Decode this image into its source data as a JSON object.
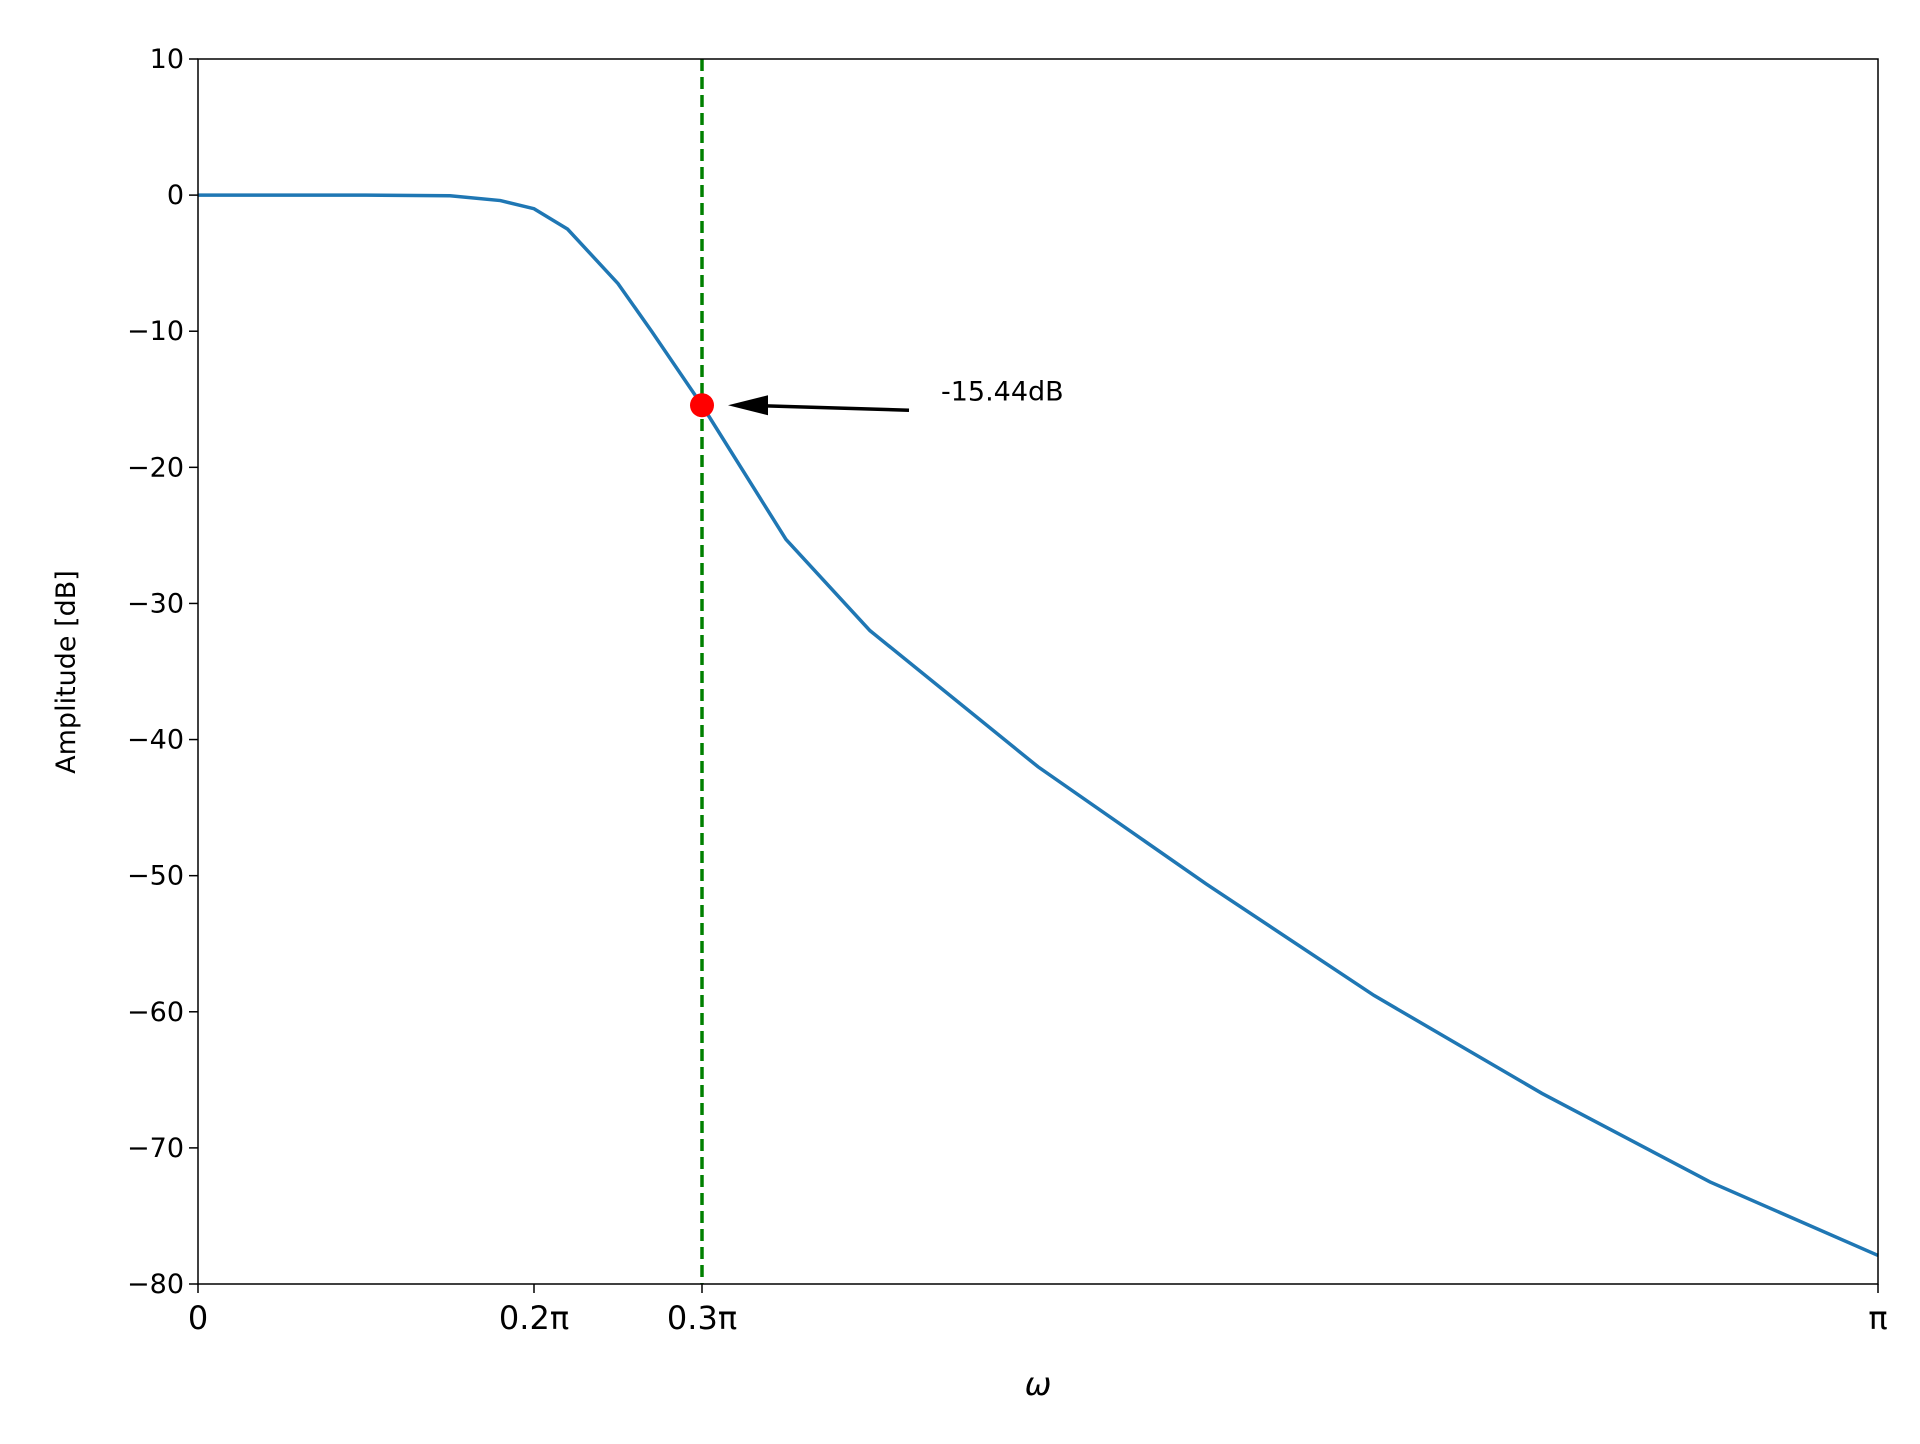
{
  "chart_data": {
    "type": "line",
    "x_label": "ω",
    "y_label": "Amplitude [dB]",
    "x": [
      0,
      0.1,
      0.15,
      0.18,
      0.2,
      0.22,
      0.25,
      0.27,
      0.3,
      0.35,
      0.4,
      0.5,
      0.6,
      0.7,
      0.8,
      0.9,
      1.0
    ],
    "series": [
      {
        "color": "#1f77b4",
        "values": [
          0,
          0,
          -0.05,
          -0.4,
          -1.0,
          -2.5,
          -6.5,
          -10,
          -15.44,
          -25.3,
          -32,
          -42,
          -50.6,
          -58.8,
          -66,
          -72.5,
          -77.9
        ]
      }
    ],
    "xlim": [
      0,
      1
    ],
    "ylim": [
      -80,
      10
    ],
    "xticks": [
      0,
      {
        "value": 0.2,
        "label": "0.2π"
      },
      {
        "value": 0.3,
        "label": "0.3π"
      },
      {
        "value": 1,
        "label": "π"
      }
    ],
    "yticks": [
      {
        "value": -80,
        "label": "−80"
      },
      {
        "value": -70,
        "label": "−70"
      },
      {
        "value": -60,
        "label": "−60"
      },
      {
        "value": -50,
        "label": "−50"
      },
      {
        "value": -40,
        "label": "−40"
      },
      {
        "value": -30,
        "label": "−30"
      },
      {
        "value": -20,
        "label": "−20"
      },
      {
        "value": -10,
        "label": "−10"
      },
      0,
      10
    ],
    "vline": {
      "x": 0.3,
      "color": "#008000"
    },
    "annotation": {
      "x": 0.3,
      "y": -15.44,
      "label": "-15.44dB",
      "color": "#ff0000"
    },
    "grid": false
  }
}
